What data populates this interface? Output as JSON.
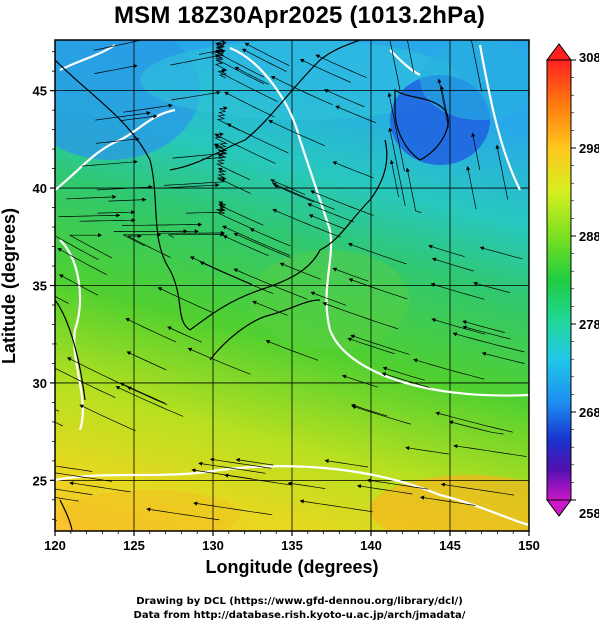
{
  "title": "MSM 18Z30Apr2025 (1013.2hPa)",
  "map": {
    "xlabel": "Longitude (degrees)",
    "ylabel": "Latitude  (degrees)",
    "x_ticks": [
      "120",
      "125",
      "130",
      "135",
      "140",
      "145",
      "150"
    ],
    "y_ticks": [
      "25",
      "30",
      "35",
      "40",
      "45"
    ],
    "lon_range": [
      120,
      150
    ],
    "lat_range": [
      22.4,
      47.6
    ],
    "fields": [
      "surface temperature (K) shaded",
      "wind streamlines",
      "coastlines",
      "temperature contours (white)"
    ]
  },
  "colorbar": {
    "labels": [
      "308",
      "298",
      "288",
      "278",
      "268",
      "258"
    ],
    "range": [
      258,
      308
    ],
    "colors": [
      "#ff2020",
      "#ff7a10",
      "#ffc81e",
      "#d6ee20",
      "#7ae020",
      "#20cc40",
      "#20d8a0",
      "#20c8e8",
      "#1e8cf0",
      "#1836d0",
      "#5010b0",
      "#cc18c8"
    ]
  },
  "credits": {
    "line1": "Drawing by DCL (https://www.gfd-dennou.org/library/dcl/)",
    "line2": "Data from http://database.rish.kyoto-u.ac.jp/arch/jmadata/"
  }
}
